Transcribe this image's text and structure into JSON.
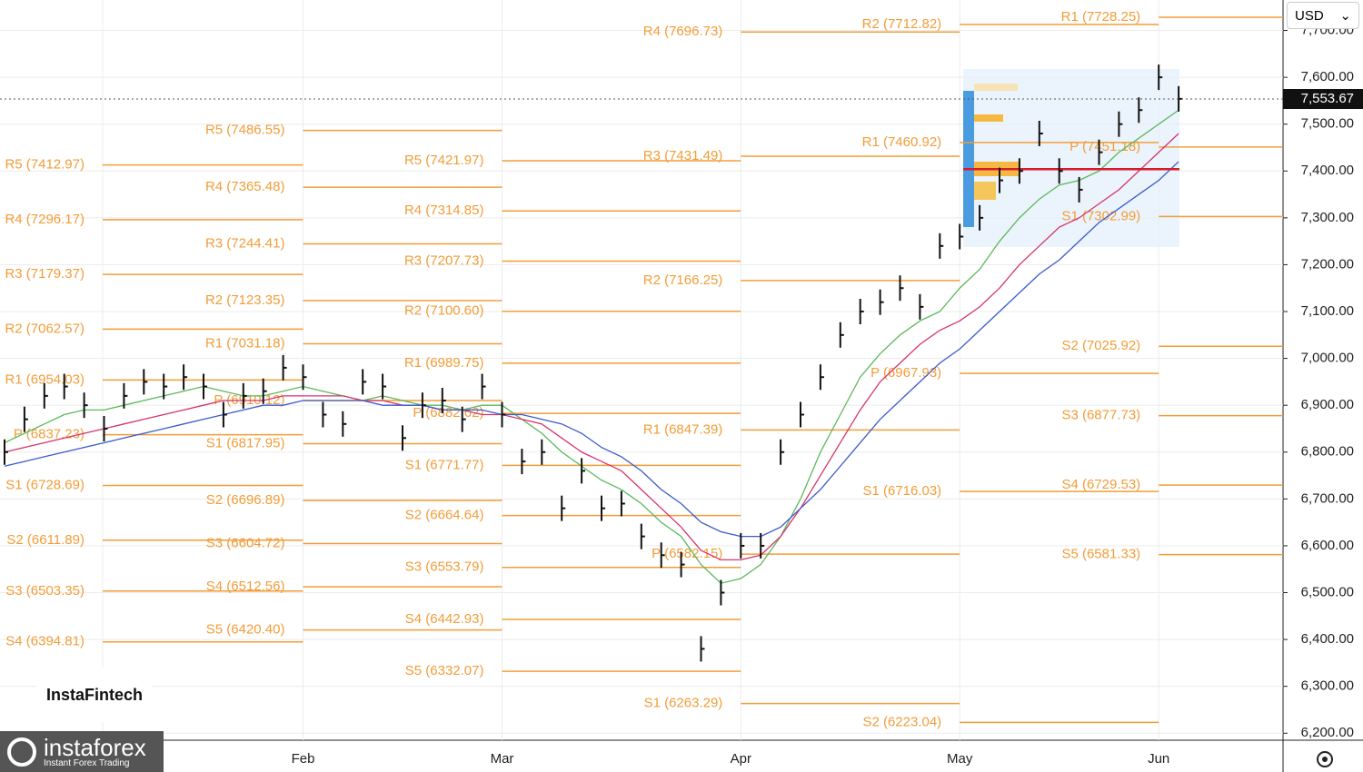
{
  "toolbar": {
    "currency": "USD"
  },
  "branding": {
    "instafintech": "InstaFintech",
    "instaforex": "instaforex",
    "tagline": "Instant Forex Trading"
  },
  "chart_data": {
    "type": "ohlc",
    "categories": [
      null,
      null,
      null,
      null,
      null,
      null,
      null,
      null,
      null,
      null,
      null,
      null,
      null,
      null,
      null,
      "Feb",
      null,
      null,
      null,
      null,
      null,
      null,
      null,
      null,
      null,
      "Mar",
      null,
      null,
      null,
      null,
      null,
      null,
      null,
      null,
      null,
      null,
      null,
      "Apr",
      null,
      null,
      null,
      null,
      null,
      null,
      null,
      null,
      null,
      null,
      "May",
      null,
      null,
      null,
      null,
      null,
      null,
      null,
      null,
      null,
      "Jun",
      null
    ],
    "values": [
      6800,
      6870,
      6920,
      6940,
      6900,
      6850,
      6920,
      6950,
      6940,
      6960,
      6940,
      6880,
      6920,
      6930,
      6980,
      6960,
      6880,
      6860,
      6950,
      6940,
      6830,
      6900,
      6910,
      6870,
      6940,
      6880,
      6780,
      6800,
      6680,
      6760,
      6680,
      6690,
      6620,
      6580,
      6560,
      6380,
      6500,
      6600,
      6600,
      6800,
      6880,
      6960,
      7050,
      7100,
      7120,
      7150,
      7110,
      7240,
      7260,
      7300,
      7380,
      7400,
      7480,
      7400,
      7360,
      7440,
      7500,
      7530,
      7600,
      7554
    ],
    "bar_color": "#111111",
    "series": [
      {
        "color": "#5cb85c",
        "values": [
          6820,
          6840,
          6860,
          6880,
          6890,
          6890,
          6900,
          6910,
          6920,
          6930,
          6940,
          6930,
          6920,
          6920,
          6930,
          6940,
          6930,
          6920,
          6910,
          6920,
          6910,
          6900,
          6900,
          6890,
          6900,
          6900,
          6870,
          6840,
          6800,
          6770,
          6740,
          6720,
          6690,
          6650,
          6620,
          6560,
          6520,
          6530,
          6560,
          6620,
          6700,
          6800,
          6880,
          6960,
          7010,
          7050,
          7080,
          7100,
          7150,
          7190,
          7250,
          7300,
          7340,
          7370,
          7380,
          7400,
          7440,
          7470,
          7500,
          7530
        ]
      },
      {
        "color": "#d6336c",
        "values": [
          6800,
          6810,
          6820,
          6830,
          6840,
          6850,
          6860,
          6870,
          6880,
          6890,
          6900,
          6910,
          6910,
          6910,
          6920,
          6920,
          6920,
          6920,
          6910,
          6910,
          6900,
          6900,
          6890,
          6890,
          6880,
          6880,
          6870,
          6860,
          6830,
          6800,
          6780,
          6760,
          6720,
          6680,
          6640,
          6590,
          6570,
          6570,
          6580,
          6620,
          6680,
          6750,
          6820,
          6890,
          6950,
          6990,
          7030,
          7060,
          7080,
          7110,
          7150,
          7200,
          7240,
          7280,
          7300,
          7330,
          7360,
          7400,
          7440,
          7480
        ]
      },
      {
        "color": "#3b5bcc",
        "values": [
          6770,
          6780,
          6790,
          6800,
          6810,
          6820,
          6830,
          6840,
          6850,
          6860,
          6870,
          6880,
          6890,
          6900,
          6900,
          6910,
          6910,
          6910,
          6910,
          6900,
          6900,
          6900,
          6890,
          6890,
          6890,
          6880,
          6880,
          6870,
          6860,
          6840,
          6810,
          6790,
          6760,
          6720,
          6690,
          6650,
          6630,
          6620,
          6620,
          6640,
          6680,
          6720,
          6770,
          6820,
          6870,
          6910,
          6950,
          6990,
          7020,
          7060,
          7100,
          7140,
          7180,
          7210,
          7250,
          7290,
          7320,
          7350,
          7380,
          7420
        ]
      }
    ],
    "current_price": {
      "value": 7553.67,
      "label": "7,553.67"
    },
    "poc": 7404,
    "pivot_color": "#f29d38",
    "pivot_groups": [
      [
        {
          "label": "R5 (7412.97)",
          "value": 7412.97
        },
        {
          "label": "R4 (7296.17)",
          "value": 7296.17
        },
        {
          "label": "R3 (7179.37)",
          "value": 7179.37
        },
        {
          "label": "R2 (7062.57)",
          "value": 7062.57
        },
        {
          "label": "R1 (6954.03)",
          "value": 6954.03
        },
        {
          "label": "P (6837.23)",
          "value": 6837.23
        },
        {
          "label": "S1 (6728.69)",
          "value": 6728.69
        },
        {
          "label": "S2 (6611.89)",
          "value": 6611.89
        },
        {
          "label": "S3 (6503.35)",
          "value": 6503.35
        },
        {
          "label": "S4 (6394.81)",
          "value": 6394.81
        }
      ],
      [
        {
          "label": "R5 (7486.55)",
          "value": 7486.55
        },
        {
          "label": "R4 (7365.48)",
          "value": 7365.48
        },
        {
          "label": "R3 (7244.41)",
          "value": 7244.41
        },
        {
          "label": "R2 (7123.35)",
          "value": 7123.35
        },
        {
          "label": "R1 (7031.18)",
          "value": 7031.18
        },
        {
          "label": "P (6910.12)",
          "value": 6910.12
        },
        {
          "label": "S1 (6817.95)",
          "value": 6817.95
        },
        {
          "label": "S2 (6696.89)",
          "value": 6696.89
        },
        {
          "label": "S3 (6604.72)",
          "value": 6604.72
        },
        {
          "label": "S4 (6512.56)",
          "value": 6512.56
        },
        {
          "label": "S5 (6420.40)",
          "value": 6420.4
        }
      ],
      [
        {
          "label": "R5 (7421.97)",
          "value": 7421.97
        },
        {
          "label": "R4 (7314.85)",
          "value": 7314.85
        },
        {
          "label": "R3 (7207.73)",
          "value": 7207.73
        },
        {
          "label": "R2 (7100.60)",
          "value": 7100.6
        },
        {
          "label": "R1 (6989.75)",
          "value": 6989.75
        },
        {
          "label": "P (6882.62)",
          "value": 6882.62
        },
        {
          "label": "S1 (6771.77)",
          "value": 6771.77
        },
        {
          "label": "S2 (6664.64)",
          "value": 6664.64
        },
        {
          "label": "S3 (6553.79)",
          "value": 6553.79
        },
        {
          "label": "S4 (6442.93)",
          "value": 6442.93
        },
        {
          "label": "S5 (6332.07)",
          "value": 6332.07
        }
      ],
      [
        {
          "label": "R4 (7696.73)",
          "value": 7696.73
        },
        {
          "label": "R3 (7431.49)",
          "value": 7431.49
        },
        {
          "label": "R2 (7166.25)",
          "value": 7166.25
        },
        {
          "label": "R1 (6847.39)",
          "value": 6847.39
        },
        {
          "label": "P (6582.15)",
          "value": 6582.15
        },
        {
          "label": "S1 (6263.29)",
          "value": 6263.29
        }
      ],
      [
        {
          "label": "R2 (7712.82)",
          "value": 7712.82
        },
        {
          "label": "R1 (7460.92)",
          "value": 7460.92
        },
        {
          "label": "P (6967.93)",
          "value": 6967.93
        },
        {
          "label": "S1 (6716.03)",
          "value": 6716.03
        },
        {
          "label": "S2 (6223.04)",
          "value": 6223.04
        }
      ],
      [
        {
          "label": "R1 (7728.25)",
          "value": 7728.25
        },
        {
          "label": "P (7451.18)",
          "value": 7451.18
        },
        {
          "label": "S1 (7302.99)",
          "value": 7302.99
        },
        {
          "label": "S2 (7025.92)",
          "value": 7025.92
        },
        {
          "label": "S3 (6877.73)",
          "value": 6877.73
        },
        {
          "label": "S4 (6729.53)",
          "value": 6729.53
        },
        {
          "label": "S5 (6581.33)",
          "value": 6581.33
        }
      ]
    ],
    "ylim": [
      6185,
      7765
    ],
    "yticks": [
      {
        "value": 6200,
        "label": "6,200.00"
      },
      {
        "value": 6300,
        "label": "6,300.00"
      },
      {
        "value": 6400,
        "label": "6,400.00"
      },
      {
        "value": 6500,
        "label": "6,500.00"
      },
      {
        "value": 6600,
        "label": "6,600.00"
      },
      {
        "value": 6700,
        "label": "6,700.00"
      },
      {
        "value": 6800,
        "label": "6,800.00"
      },
      {
        "value": 6900,
        "label": "6,900.00"
      },
      {
        "value": 7000,
        "label": "7,000.00"
      },
      {
        "value": 7100,
        "label": "7,100.00"
      },
      {
        "value": 7200,
        "label": "7,200.00"
      },
      {
        "value": 7300,
        "label": "7,300.00"
      },
      {
        "value": 7400,
        "label": "7,400.00"
      },
      {
        "value": 7500,
        "label": "7,500.00"
      },
      {
        "value": 7600,
        "label": "7,600.00"
      },
      {
        "value": 7700,
        "label": "7,700.00"
      }
    ],
    "grid": true
  }
}
